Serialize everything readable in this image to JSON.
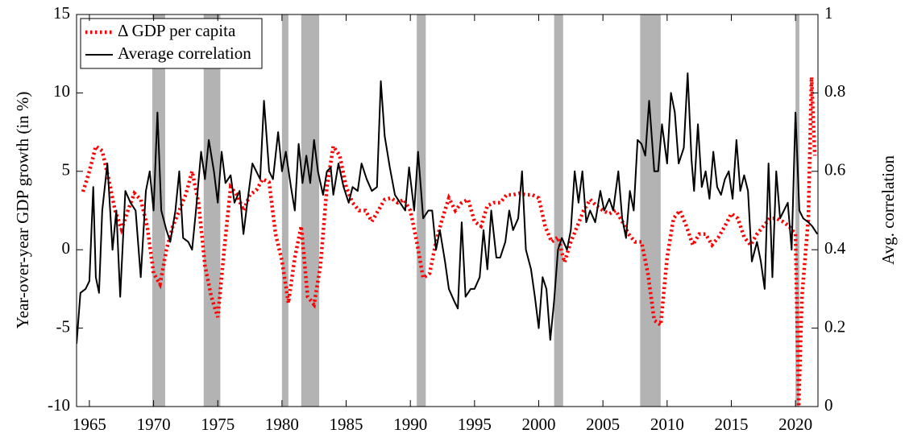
{
  "chart_data": {
    "type": "line",
    "xlim": [
      1964,
      2021.75
    ],
    "xticks": [
      1965,
      1970,
      1975,
      1980,
      1985,
      1990,
      1995,
      2000,
      2005,
      2010,
      2015,
      2020
    ],
    "ylim": [
      -10,
      15
    ],
    "yticks": [
      -10,
      -5,
      0,
      5,
      10,
      15
    ],
    "y2lim": [
      0,
      1
    ],
    "y2ticks": [
      0,
      0.2,
      0.4,
      0.6,
      0.8,
      1
    ],
    "ylabel": "Year-over-year GDP growth (in %)",
    "y2label": "Avg. correlation",
    "legend": "upper left",
    "shade_color": "#b3b3b3",
    "shaded_periods": [
      [
        1969.9,
        1970.9
      ],
      [
        1973.9,
        1975.2
      ],
      [
        1980.0,
        1980.5
      ],
      [
        1981.5,
        1982.9
      ],
      [
        1990.5,
        1991.2
      ],
      [
        2001.2,
        2001.9
      ],
      [
        2007.9,
        2009.5
      ],
      [
        2020.0,
        2020.3
      ]
    ],
    "series": [
      {
        "name": "Δ GDP per capita",
        "color": "#ff0000",
        "axis": "y",
        "x": [
          1964.5,
          1965,
          1965.5,
          1966,
          1966.5,
          1967,
          1967.5,
          1968,
          1968.5,
          1969,
          1969.5,
          1970,
          1970.5,
          1971,
          1971.5,
          1972,
          1972.5,
          1973,
          1973.5,
          1974,
          1974.5,
          1975,
          1975.5,
          1976,
          1976.5,
          1977,
          1977.5,
          1978,
          1978.5,
          1979,
          1979.5,
          1980,
          1980.5,
          1981,
          1981.5,
          1982,
          1982.5,
          1983,
          1983.5,
          1984,
          1984.5,
          1985,
          1985.5,
          1986,
          1986.5,
          1987,
          1987.5,
          1988,
          1988.5,
          1989,
          1989.5,
          1990,
          1990.5,
          1991,
          1991.5,
          1992,
          1992.5,
          1993,
          1993.5,
          1994,
          1994.5,
          1995,
          1995.5,
          1996,
          1996.5,
          1997,
          1997.5,
          1998,
          1998.5,
          1999,
          1999.5,
          2000,
          2000.5,
          2001,
          2001.5,
          2002,
          2002.5,
          2003,
          2003.5,
          2004,
          2004.5,
          2005,
          2005.5,
          2006,
          2006.5,
          2007,
          2007.5,
          2008,
          2008.5,
          2009,
          2009.5,
          2010,
          2010.5,
          2011,
          2011.5,
          2012,
          2012.5,
          2013,
          2013.5,
          2014,
          2014.5,
          2015,
          2015.5,
          2016,
          2016.5,
          2017,
          2017.5,
          2018,
          2018.5,
          2019,
          2019.5,
          2020,
          2020.25,
          2020.5,
          2021,
          2021.25,
          2021.5
        ],
        "values": [
          3.7,
          5,
          6.6,
          6.3,
          4.5,
          2.5,
          1.3,
          2.5,
          3.6,
          3.2,
          1.5,
          -1.5,
          -2.2,
          0,
          1.5,
          2.5,
          3.5,
          5,
          3,
          -1,
          -3,
          -4.3,
          0,
          4,
          3.5,
          2.5,
          3.5,
          3.8,
          4.5,
          4.3,
          1,
          -0.7,
          -3.4,
          -0.5,
          1.5,
          -3,
          -3.5,
          -1,
          4,
          6.6,
          6,
          4,
          3,
          2.5,
          2.5,
          1.8,
          2.5,
          3.2,
          3.3,
          3,
          3.2,
          2.5,
          0.5,
          -1.8,
          -1.5,
          0.5,
          2,
          3.3,
          2.5,
          3,
          3.2,
          1.8,
          1.5,
          2.8,
          3,
          3,
          3.5,
          3.5,
          3.6,
          3.5,
          3.5,
          3.3,
          1.5,
          0.5,
          0.8,
          -0.8,
          0.5,
          1.5,
          2.5,
          3.2,
          2.8,
          2.5,
          2.3,
          2.5,
          1.8,
          1,
          0.5,
          0.5,
          -1.5,
          -4.5,
          -4.8,
          -0.5,
          2,
          2.5,
          1.5,
          0.3,
          1,
          1,
          0.3,
          0.8,
          1.5,
          2.3,
          2,
          0.8,
          0.3,
          1,
          1.5,
          2,
          2,
          1.8,
          1.5,
          1,
          -10,
          -3,
          2,
          11,
          6
        ]
      },
      {
        "name": "Average correlation",
        "color": "#000000",
        "axis": "y2",
        "x": [
          1964.0,
          1964.3,
          1964.7,
          1965,
          1965.3,
          1965.5,
          1965.75,
          1966,
          1966.4,
          1966.8,
          1967.1,
          1967.4,
          1967.8,
          1968.2,
          1968.6,
          1969,
          1969.4,
          1969.7,
          1970,
          1970.3,
          1970.6,
          1971,
          1971.3,
          1971.7,
          1972,
          1972.3,
          1972.7,
          1973,
          1973.3,
          1973.7,
          1974,
          1974.3,
          1974.7,
          1975,
          1975.3,
          1975.6,
          1976,
          1976.3,
          1976.7,
          1977,
          1977.3,
          1977.7,
          1978,
          1978.3,
          1978.6,
          1979,
          1979.3,
          1979.7,
          1980,
          1980.3,
          1980.7,
          1981,
          1981.3,
          1981.6,
          1981.9,
          1982.2,
          1982.5,
          1982.8,
          1983.2,
          1983.5,
          1983.8,
          1984,
          1984.4,
          1984.8,
          1985.2,
          1985.5,
          1985.9,
          1986.2,
          1986.6,
          1987,
          1987.4,
          1987.7,
          1988,
          1988.4,
          1988.8,
          1989.2,
          1989.6,
          1989.9,
          1990.3,
          1990.6,
          1991,
          1991.4,
          1991.7,
          1992,
          1992.3,
          1992.7,
          1993,
          1993.4,
          1993.7,
          1994,
          1994.3,
          1994.7,
          1995,
          1995.4,
          1995.7,
          1996,
          1996.3,
          1996.7,
          1997,
          1997.4,
          1997.7,
          1998,
          1998.4,
          1998.7,
          1999,
          1999.4,
          1999.7,
          2000,
          2000.3,
          2000.6,
          2000.9,
          2001.2,
          2001.5,
          2001.8,
          2002.2,
          2002.5,
          2002.8,
          2003.1,
          2003.4,
          2003.7,
          2004,
          2004.4,
          2004.8,
          2005.1,
          2005.5,
          2005.8,
          2006.2,
          2006.5,
          2006.8,
          2007.1,
          2007.4,
          2007.7,
          2008,
          2008.3,
          2008.6,
          2009,
          2009.3,
          2009.6,
          2010,
          2010.3,
          2010.6,
          2010.9,
          2011.3,
          2011.6,
          2011.9,
          2012.1,
          2012.4,
          2012.7,
          2013,
          2013.3,
          2013.6,
          2013.9,
          2014.2,
          2014.5,
          2014.8,
          2015.1,
          2015.4,
          2015.7,
          2016,
          2016.3,
          2016.6,
          2017,
          2017.3,
          2017.6,
          2017.9,
          2018.2,
          2018.5,
          2018.8,
          2019.1,
          2019.4,
          2019.7,
          2020,
          2020.3,
          2020.6,
          2021,
          2021.3,
          2021.7
        ],
        "values": [
          0.16,
          0.29,
          0.3,
          0.32,
          0.56,
          0.33,
          0.29,
          0.5,
          0.62,
          0.4,
          0.5,
          0.28,
          0.55,
          0.52,
          0.5,
          0.33,
          0.55,
          0.6,
          0.5,
          0.75,
          0.5,
          0.45,
          0.42,
          0.5,
          0.6,
          0.43,
          0.42,
          0.4,
          0.5,
          0.65,
          0.58,
          0.68,
          0.6,
          0.52,
          0.65,
          0.57,
          0.59,
          0.52,
          0.55,
          0.44,
          0.52,
          0.62,
          0.6,
          0.58,
          0.78,
          0.6,
          0.58,
          0.7,
          0.6,
          0.65,
          0.56,
          0.5,
          0.67,
          0.57,
          0.64,
          0.57,
          0.68,
          0.6,
          0.54,
          0.6,
          0.61,
          0.54,
          0.62,
          0.56,
          0.52,
          0.56,
          0.55,
          0.62,
          0.58,
          0.55,
          0.56,
          0.83,
          0.69,
          0.61,
          0.54,
          0.52,
          0.5,
          0.61,
          0.5,
          0.65,
          0.48,
          0.5,
          0.5,
          0.4,
          0.45,
          0.37,
          0.3,
          0.27,
          0.25,
          0.47,
          0.28,
          0.3,
          0.3,
          0.33,
          0.45,
          0.35,
          0.5,
          0.38,
          0.38,
          0.42,
          0.5,
          0.45,
          0.48,
          0.6,
          0.4,
          0.35,
          0.28,
          0.2,
          0.33,
          0.3,
          0.17,
          0.27,
          0.4,
          0.43,
          0.4,
          0.45,
          0.6,
          0.52,
          0.6,
          0.47,
          0.5,
          0.47,
          0.55,
          0.5,
          0.53,
          0.5,
          0.6,
          0.48,
          0.43,
          0.55,
          0.5,
          0.68,
          0.67,
          0.64,
          0.78,
          0.6,
          0.6,
          0.72,
          0.62,
          0.8,
          0.75,
          0.62,
          0.66,
          0.85,
          0.63,
          0.55,
          0.72,
          0.56,
          0.6,
          0.53,
          0.65,
          0.56,
          0.54,
          0.58,
          0.6,
          0.53,
          0.68,
          0.55,
          0.59,
          0.55,
          0.37,
          0.42,
          0.37,
          0.3,
          0.62,
          0.33,
          0.6,
          0.48,
          0.5,
          0.52,
          0.4,
          0.75,
          0.5,
          0.48,
          0.47,
          0.46,
          0.44
        ]
      }
    ]
  }
}
